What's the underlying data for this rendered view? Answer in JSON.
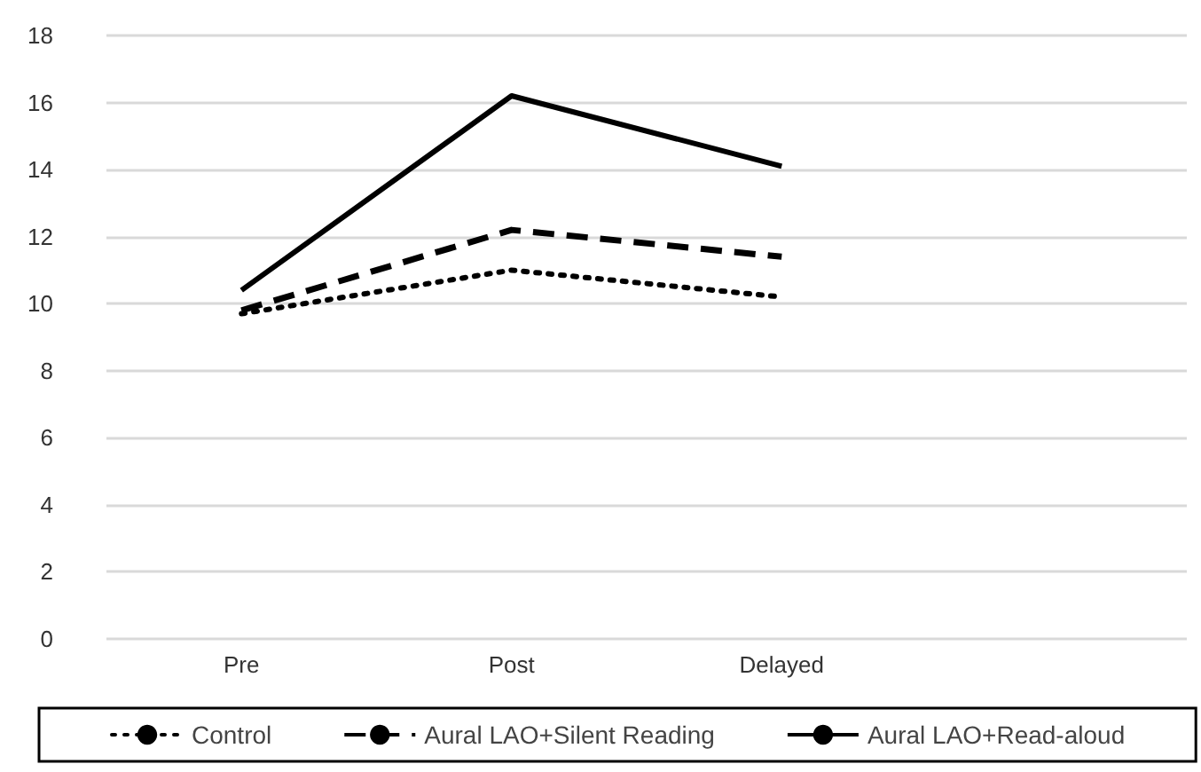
{
  "chart_data": {
    "type": "line",
    "categories": [
      "Pre",
      "Post",
      "Delayed",
      null
    ],
    "series": [
      {
        "name": "Control",
        "color": "#000000",
        "line_style": "dotted",
        "values": [
          9.7,
          11.0,
          10.2,
          null
        ]
      },
      {
        "name": "Aural LAO+Silent Reading",
        "color": "#000000",
        "line_style": "dashed",
        "values": [
          9.8,
          12.2,
          11.4,
          null
        ]
      },
      {
        "name": "Aural LAO+Read-aloud",
        "color": "#000000",
        "line_style": "solid",
        "values": [
          10.4,
          16.2,
          14.1,
          null
        ]
      }
    ],
    "ylim": [
      0,
      18
    ],
    "yticks": [
      0,
      2,
      4,
      6,
      8,
      10,
      12,
      14,
      16,
      18
    ],
    "grid": "y",
    "legend": "bottom",
    "marker": "none"
  }
}
